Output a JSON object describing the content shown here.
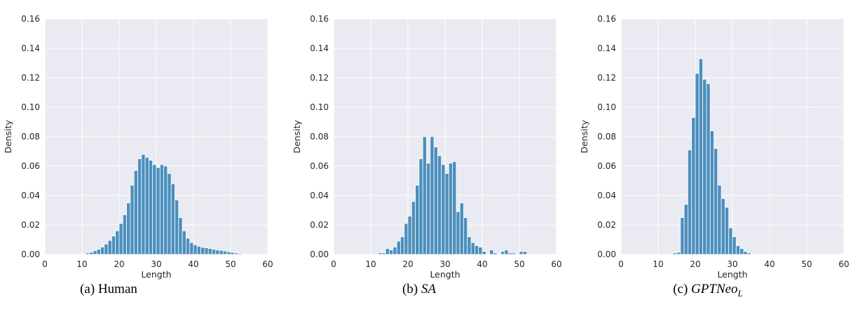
{
  "colors": {
    "bar_fill": "#4c8fbd",
    "bar_edge": "#ffffff",
    "plot_bg": "#eaeaf2",
    "grid": "#ffffff"
  },
  "chart_data": [
    {
      "type": "bar",
      "caption_prefix": "(a) ",
      "caption_main": "Human",
      "caption_sub": "",
      "caption_italic": false,
      "xlabel": "Length",
      "ylabel": "Density",
      "xlim": [
        0,
        60
      ],
      "ylim": [
        0,
        0.16
      ],
      "xticks": [
        "0",
        "10",
        "20",
        "30",
        "40",
        "50",
        "60"
      ],
      "yticks": [
        "0.00",
        "0.02",
        "0.04",
        "0.06",
        "0.08",
        "0.10",
        "0.12",
        "0.14",
        "0.16"
      ],
      "grid": true,
      "bins": [
        {
          "x": 11,
          "y": 0.001
        },
        {
          "x": 12,
          "y": 0.0015
        },
        {
          "x": 13,
          "y": 0.0025
        },
        {
          "x": 14,
          "y": 0.0035
        },
        {
          "x": 15,
          "y": 0.005
        },
        {
          "x": 16,
          "y": 0.007
        },
        {
          "x": 17,
          "y": 0.0095
        },
        {
          "x": 18,
          "y": 0.0125
        },
        {
          "x": 19,
          "y": 0.016
        },
        {
          "x": 20,
          "y": 0.021
        },
        {
          "x": 21,
          "y": 0.027
        },
        {
          "x": 22,
          "y": 0.035
        },
        {
          "x": 23,
          "y": 0.047
        },
        {
          "x": 24,
          "y": 0.057
        },
        {
          "x": 25,
          "y": 0.065
        },
        {
          "x": 26,
          "y": 0.068
        },
        {
          "x": 27,
          "y": 0.066
        },
        {
          "x": 28,
          "y": 0.064
        },
        {
          "x": 29,
          "y": 0.061
        },
        {
          "x": 30,
          "y": 0.059
        },
        {
          "x": 31,
          "y": 0.061
        },
        {
          "x": 32,
          "y": 0.06
        },
        {
          "x": 33,
          "y": 0.055
        },
        {
          "x": 34,
          "y": 0.048
        },
        {
          "x": 35,
          "y": 0.037
        },
        {
          "x": 36,
          "y": 0.025
        },
        {
          "x": 37,
          "y": 0.016
        },
        {
          "x": 38,
          "y": 0.011
        },
        {
          "x": 39,
          "y": 0.008
        },
        {
          "x": 40,
          "y": 0.0065
        },
        {
          "x": 41,
          "y": 0.0055
        },
        {
          "x": 42,
          "y": 0.0048
        },
        {
          "x": 43,
          "y": 0.0045
        },
        {
          "x": 44,
          "y": 0.004
        },
        {
          "x": 45,
          "y": 0.0035
        },
        {
          "x": 46,
          "y": 0.003
        },
        {
          "x": 47,
          "y": 0.0027
        },
        {
          "x": 48,
          "y": 0.0023
        },
        {
          "x": 49,
          "y": 0.0018
        },
        {
          "x": 50,
          "y": 0.0014
        },
        {
          "x": 51,
          "y": 0.001
        },
        {
          "x": 52,
          "y": 0.0007
        },
        {
          "x": 53,
          "y": 0.0004
        }
      ]
    },
    {
      "type": "bar",
      "caption_prefix": "(b) ",
      "caption_main": "SA",
      "caption_sub": "",
      "caption_italic": true,
      "xlabel": "Length",
      "ylabel": "Density",
      "xlim": [
        0,
        60
      ],
      "ylim": [
        0,
        0.16
      ],
      "xticks": [
        "0",
        "10",
        "20",
        "30",
        "40",
        "50",
        "60"
      ],
      "yticks": [
        "0.00",
        "0.02",
        "0.04",
        "0.06",
        "0.08",
        "0.10",
        "0.12",
        "0.14",
        "0.16"
      ],
      "grid": true,
      "bins": [
        {
          "x": 12,
          "y": 0.001
        },
        {
          "x": 13,
          "y": 0.001
        },
        {
          "x": 14,
          "y": 0.004
        },
        {
          "x": 15,
          "y": 0.003
        },
        {
          "x": 16,
          "y": 0.005
        },
        {
          "x": 17,
          "y": 0.009
        },
        {
          "x": 18,
          "y": 0.012
        },
        {
          "x": 19,
          "y": 0.021
        },
        {
          "x": 20,
          "y": 0.026
        },
        {
          "x": 21,
          "y": 0.036
        },
        {
          "x": 22,
          "y": 0.047
        },
        {
          "x": 23,
          "y": 0.065
        },
        {
          "x": 24,
          "y": 0.08
        },
        {
          "x": 25,
          "y": 0.062
        },
        {
          "x": 26,
          "y": 0.08
        },
        {
          "x": 27,
          "y": 0.073
        },
        {
          "x": 28,
          "y": 0.067
        },
        {
          "x": 29,
          "y": 0.061
        },
        {
          "x": 30,
          "y": 0.055
        },
        {
          "x": 31,
          "y": 0.062
        },
        {
          "x": 32,
          "y": 0.063
        },
        {
          "x": 33,
          "y": 0.029
        },
        {
          "x": 34,
          "y": 0.035
        },
        {
          "x": 35,
          "y": 0.025
        },
        {
          "x": 36,
          "y": 0.012
        },
        {
          "x": 37,
          "y": 0.008
        },
        {
          "x": 38,
          "y": 0.006
        },
        {
          "x": 39,
          "y": 0.005
        },
        {
          "x": 40,
          "y": 0.002
        },
        {
          "x": 42,
          "y": 0.003
        },
        {
          "x": 43,
          "y": 0.001
        },
        {
          "x": 45,
          "y": 0.002
        },
        {
          "x": 46,
          "y": 0.003
        },
        {
          "x": 47,
          "y": 0.001
        },
        {
          "x": 48,
          "y": 0.001
        },
        {
          "x": 50,
          "y": 0.002
        },
        {
          "x": 51,
          "y": 0.002
        }
      ]
    },
    {
      "type": "bar",
      "caption_prefix": "(c) ",
      "caption_main": "GPTNeo",
      "caption_sub": "L",
      "caption_italic": true,
      "xlabel": "Length",
      "ylabel": "Density",
      "xlim": [
        0,
        60
      ],
      "ylim": [
        0,
        0.16
      ],
      "xticks": [
        "0",
        "10",
        "20",
        "30",
        "40",
        "50",
        "60"
      ],
      "yticks": [
        "0.00",
        "0.02",
        "0.04",
        "0.06",
        "0.08",
        "0.10",
        "0.12",
        "0.14",
        "0.16"
      ],
      "grid": true,
      "bins": [
        {
          "x": 13,
          "y": 0.0005
        },
        {
          "x": 14,
          "y": 0.001
        },
        {
          "x": 15,
          "y": 0.0015
        },
        {
          "x": 16,
          "y": 0.025
        },
        {
          "x": 17,
          "y": 0.034
        },
        {
          "x": 18,
          "y": 0.071
        },
        {
          "x": 19,
          "y": 0.093
        },
        {
          "x": 20,
          "y": 0.123
        },
        {
          "x": 21,
          "y": 0.133
        },
        {
          "x": 22,
          "y": 0.119
        },
        {
          "x": 23,
          "y": 0.116
        },
        {
          "x": 24,
          "y": 0.084
        },
        {
          "x": 25,
          "y": 0.072
        },
        {
          "x": 26,
          "y": 0.047
        },
        {
          "x": 27,
          "y": 0.038
        },
        {
          "x": 28,
          "y": 0.032
        },
        {
          "x": 29,
          "y": 0.018
        },
        {
          "x": 30,
          "y": 0.012
        },
        {
          "x": 31,
          "y": 0.006
        },
        {
          "x": 32,
          "y": 0.004
        },
        {
          "x": 33,
          "y": 0.002
        },
        {
          "x": 34,
          "y": 0.001
        }
      ]
    }
  ]
}
